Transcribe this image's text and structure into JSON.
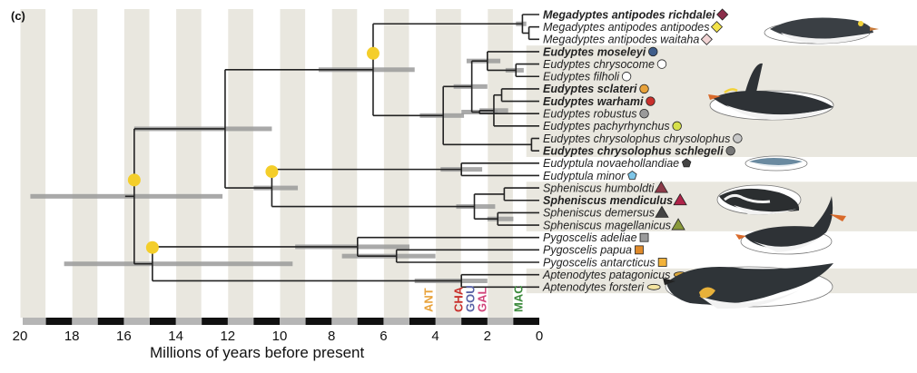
{
  "panel_label": "(c)",
  "axis": {
    "title": "Millions of years before present",
    "ticks": [
      20,
      18,
      16,
      14,
      12,
      10,
      8,
      6,
      4,
      2,
      0
    ],
    "range_ma": [
      20,
      0
    ]
  },
  "colors": {
    "stripe": "#e9e7df",
    "band": "#e9e7df",
    "branch": "#222222",
    "bar": "#9a9a9a",
    "node_dot": "#f4ce2a"
  },
  "taxa": [
    {
      "label": "Megadyptes antipodes richdalei",
      "color": "#b3283a",
      "bold": true,
      "marker": "diamond",
      "marker_color": "#8b2e4a"
    },
    {
      "label": "Megadyptes antipodes antipodes",
      "color": "#222222",
      "bold": false,
      "marker": "diamond",
      "marker_color": "#f2e24a"
    },
    {
      "label": "Megadyptes antipodes waitaha",
      "color": "#222222",
      "bold": false,
      "marker": "diamond",
      "marker_color": "#f1d3d3"
    },
    {
      "label": "Eudyptes moseleyi",
      "color": "#5a63a6",
      "bold": true,
      "marker": "circle",
      "marker_color": "#3f5d8a"
    },
    {
      "label": "Eudyptes chrysocome",
      "color": "#222222",
      "bold": false,
      "marker": "circle",
      "marker_color": "#ffffff"
    },
    {
      "label": "Eudyptes filholi",
      "color": "#222222",
      "bold": false,
      "marker": "circle",
      "marker_color": "#ffffff"
    },
    {
      "label": "Eudyptes sclateri",
      "color": "#e8a23a",
      "bold": true,
      "marker": "circle",
      "marker_color": "#e8a23a"
    },
    {
      "label": "Eudyptes warhami",
      "color": "#c9302c",
      "bold": true,
      "marker": "circle",
      "marker_color": "#c9302c"
    },
    {
      "label": "Eudyptes robustus",
      "color": "#222222",
      "bold": false,
      "marker": "circle",
      "marker_color": "#9a9a9a"
    },
    {
      "label": "Eudyptes pachyrhynchus",
      "color": "#222222",
      "bold": false,
      "marker": "circle",
      "marker_color": "#d6e04a"
    },
    {
      "label": "Eudyptes chrysolophus chrysolophus",
      "color": "#222222",
      "bold": false,
      "marker": "circle",
      "marker_color": "#c8c8c8"
    },
    {
      "label": "Eudyptes chrysolophus schlegeli",
      "color": "#3d8b3d",
      "bold": true,
      "marker": "circle",
      "marker_color": "#777777"
    },
    {
      "label": "Eudyptula novaehollandiae",
      "color": "#222222",
      "bold": false,
      "marker": "pentagon",
      "marker_color": "#444444"
    },
    {
      "label": "Eudyptula minor",
      "color": "#222222",
      "bold": false,
      "marker": "pentagon",
      "marker_color": "#7ec6e8"
    },
    {
      "label": "Spheniscus humboldti",
      "color": "#222222",
      "bold": false,
      "marker": "triangle",
      "marker_color": "#8b3a48"
    },
    {
      "label": "Spheniscus mendiculus",
      "color": "#d2457a",
      "bold": true,
      "marker": "triangle",
      "marker_color": "#b0244a"
    },
    {
      "label": "Spheniscus demersus",
      "color": "#222222",
      "bold": false,
      "marker": "triangle",
      "marker_color": "#444444"
    },
    {
      "label": "Spheniscus magellanicus",
      "color": "#222222",
      "bold": false,
      "marker": "triangle",
      "marker_color": "#8a9a3a"
    },
    {
      "label": "Pygoscelis adeliae",
      "color": "#222222",
      "bold": false,
      "marker": "square",
      "marker_color": "#9a9a9a"
    },
    {
      "label": "Pygoscelis papua",
      "color": "#222222",
      "bold": false,
      "marker": "square",
      "marker_color": "#e08a2a"
    },
    {
      "label": "Pygoscelis antarcticus",
      "color": "#222222",
      "bold": false,
      "marker": "square",
      "marker_color": "#f2b23a"
    },
    {
      "label": "Aptenodytes patagonicus",
      "color": "#222222",
      "bold": false,
      "marker": "ellipse",
      "marker_color": "#d9a63a"
    },
    {
      "label": "Aptenodytes forsteri",
      "color": "#222222",
      "bold": false,
      "marker": "ellipse",
      "marker_color": "#f4e4a0"
    }
  ],
  "era_labels": [
    {
      "text": "ANT",
      "color": "#e8a23a",
      "age_ma": 4.1
    },
    {
      "text": "CHA",
      "color": "#c9302c",
      "age_ma": 2.95
    },
    {
      "text": "GOU",
      "color": "#5a63a6",
      "age_ma": 2.5
    },
    {
      "text": "GAL",
      "color": "#d2457a",
      "age_ma": 2.05
    },
    {
      "text": "MAC",
      "color": "#3d8b3d",
      "age_ma": 0.65
    }
  ],
  "nodes": [
    {
      "id": "root",
      "age": 15.6,
      "children": [
        "N_ApPy",
        "N_SphEudMeg"
      ],
      "bar": [
        19.6,
        12.2
      ],
      "dot": true
    },
    {
      "id": "N_ApPy",
      "age": 14.9,
      "children": [
        "N_Pygo",
        "N_Apt"
      ],
      "bar": [
        18.3,
        9.5
      ],
      "dot": true
    },
    {
      "id": "N_SphEudMeg",
      "age": 12.1,
      "children": [
        "N_MegEud",
        "N_SphEu"
      ],
      "bar": [
        15.6,
        10.3
      ]
    },
    {
      "id": "N_MegEud",
      "age": 6.4,
      "children": [
        "N_Meg",
        "N_Eud"
      ],
      "bar": [
        8.5,
        4.8
      ],
      "dot": true
    },
    {
      "id": "N_Meg",
      "age": 0.65,
      "children": [
        "t0",
        "N_Meg2"
      ],
      "bar": [
        0.9,
        0.5
      ]
    },
    {
      "id": "N_Meg2",
      "age": 0.4,
      "children": [
        "t1",
        "t2"
      ]
    },
    {
      "id": "N_Eud",
      "age": 3.7,
      "children": [
        "N_Eud1",
        "N_Eud2"
      ],
      "bar": [
        4.6,
        2.9
      ]
    },
    {
      "id": "N_Eud1",
      "age": 2.6,
      "children": [
        "N_rock",
        "N_crest"
      ],
      "bar": [
        3.3,
        2.0
      ]
    },
    {
      "id": "N_rock",
      "age": 2.0,
      "children": [
        "t3",
        "N_rock2"
      ],
      "bar": [
        2.8,
        1.5
      ]
    },
    {
      "id": "N_rock2",
      "age": 0.9,
      "children": [
        "t4",
        "t5"
      ],
      "bar": [
        1.3,
        0.6
      ]
    },
    {
      "id": "N_crest",
      "age": 2.3,
      "children": [
        "N_cr1",
        "t8"
      ],
      "bar": [
        3.0,
        1.6
      ]
    },
    {
      "id": "N_cr1",
      "age": 1.75,
      "children": [
        "N_cr2",
        "t9"
      ],
      "bar": [
        2.3,
        1.2
      ]
    },
    {
      "id": "N_cr2",
      "age": 1.45,
      "children": [
        "t6",
        "t7"
      ]
    },
    {
      "id": "N_Eud2",
      "age": 0.3,
      "children": [
        "t10",
        "t11"
      ]
    },
    {
      "id": "N_SphEu",
      "age": 10.3,
      "children": [
        "N_Eudyptula",
        "N_Sph"
      ],
      "bar": [
        11.0,
        9.3
      ],
      "dot": true
    },
    {
      "id": "N_Eudyptula",
      "age": 3.0,
      "children": [
        "t12",
        "t13"
      ],
      "bar": [
        3.8,
        2.2
      ]
    },
    {
      "id": "N_Sph",
      "age": 2.5,
      "children": [
        "N_Sph1",
        "N_Sph2"
      ],
      "bar": [
        3.2,
        1.7
      ]
    },
    {
      "id": "N_Sph1",
      "age": 1.35,
      "children": [
        "t14",
        "t15"
      ]
    },
    {
      "id": "N_Sph2",
      "age": 1.6,
      "children": [
        "t16",
        "t17"
      ],
      "bar": [
        2.0,
        1.0
      ]
    },
    {
      "id": "N_Pygo",
      "age": 7.0,
      "children": [
        "t18",
        "N_Pygo2"
      ],
      "bar": [
        9.4,
        5.0
      ]
    },
    {
      "id": "N_Pygo2",
      "age": 5.5,
      "children": [
        "t19",
        "t20"
      ],
      "bar": [
        7.6,
        4.0
      ]
    },
    {
      "id": "N_Apt",
      "age": 3.0,
      "children": [
        "t21",
        "t22"
      ],
      "bar": [
        4.8,
        2.0
      ]
    }
  ]
}
